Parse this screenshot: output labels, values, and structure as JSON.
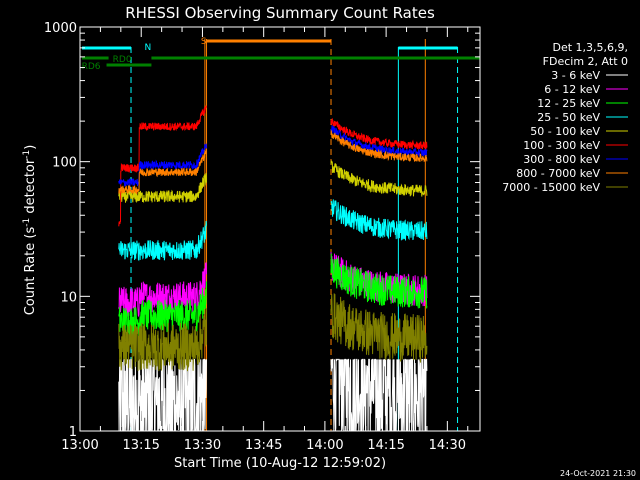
{
  "chart_data": {
    "type": "line",
    "title": "RHESSI Observing Summary Count Rates",
    "xlabel": "Start Time (10-Aug-12 12:59:02)",
    "ylabel_parts": [
      "Count Rate (s",
      "-1",
      " detector",
      "-1",
      ")"
    ],
    "ylabel": "Count Rate (s-1 detector-1)",
    "y_scale": "log",
    "ylim": [
      1,
      1000
    ],
    "xlim_minutes": [
      0,
      98
    ],
    "x_ticks": [
      {
        "label": "13:00",
        "value": 0
      },
      {
        "label": "13:15",
        "value": 15
      },
      {
        "label": "13:30",
        "value": 30
      },
      {
        "label": "13:45",
        "value": 45
      },
      {
        "label": "14:00",
        "value": 60
      },
      {
        "label": "14:15",
        "value": 75
      },
      {
        "label": "14:30",
        "value": 90
      }
    ],
    "y_ticks": [
      {
        "label": "1",
        "value": 1
      },
      {
        "label": "10",
        "value": 10
      },
      {
        "label": "100",
        "value": 100
      },
      {
        "label": "1000",
        "value": 1000
      }
    ],
    "legend": {
      "placement": "right",
      "header": [
        "Det 1,3,5,6,9,",
        "FDecim 2, Att 0"
      ]
    },
    "segments": [
      [
        9.5,
        31
      ],
      [
        61.5,
        85
      ]
    ],
    "series": [
      {
        "name": "3 - 6 keV",
        "color": "#ffffff",
        "level1": 1.6,
        "level2": 1.9,
        "noise": 0.35
      },
      {
        "name": "6 - 12 keV",
        "color": "#ff00ff",
        "level1": 9,
        "level2": 11,
        "noise": 0.08
      },
      {
        "name": "12 - 25 keV",
        "color": "#00ff00",
        "level1": 6.5,
        "level2": 10.5,
        "noise": 0.08
      },
      {
        "name": "25 - 50 keV",
        "color": "#00ffff",
        "level1": 22,
        "level2": 30,
        "noise": 0.05
      },
      {
        "name": "50 - 100 keV",
        "color": "#d0d000",
        "level1": 55,
        "level2": 60,
        "noise": 0.03
      },
      {
        "name": "100 - 300 keV",
        "color": "#ff0000",
        "level1": 90,
        "level2": 130,
        "noise": 0.02
      },
      {
        "name": "300 - 800 keV",
        "color": "#0000ff",
        "level1": 70,
        "level2": 115,
        "noise": 0.02
      },
      {
        "name": "800 - 7000 keV",
        "color": "#ff8000",
        "level1": 62,
        "level2": 105,
        "noise": 0.02
      },
      {
        "name": "7000 - 15000 keV",
        "color": "#808000",
        "level1": 4.2,
        "level2": 4.8,
        "noise": 0.12
      }
    ],
    "annotations": [
      {
        "label": "N",
        "color": "#00ffff"
      },
      {
        "label": "S",
        "color": "#ff8000"
      },
      {
        "label": "RD0",
        "color": "#008000"
      },
      {
        "label": "RD6",
        "color": "#008000"
      }
    ],
    "footer": "24-Oct-2021 21:30"
  }
}
